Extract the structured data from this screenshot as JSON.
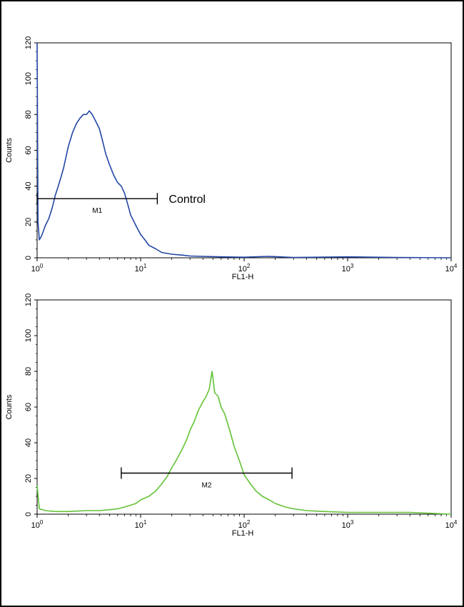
{
  "colors": {
    "panel1": "#2346a6",
    "panel2": "#62c236",
    "axis": "#000000"
  },
  "chart_data": [
    {
      "type": "line",
      "xlabel": "FL1-H",
      "ylabel": "Counts",
      "xscale": "log",
      "xlim": [
        1,
        10000
      ],
      "ylim": [
        0,
        120
      ],
      "x_ticks": [
        {
          "base": "10",
          "exp": "0"
        },
        {
          "base": "10",
          "exp": "1"
        },
        {
          "base": "10",
          "exp": "2"
        },
        {
          "base": "10",
          "exp": "3"
        },
        {
          "base": "10",
          "exp": "4"
        }
      ],
      "y_ticks": [
        "0",
        "20",
        "40",
        "60",
        "80",
        "100",
        "120"
      ],
      "marker": {
        "label": "M1",
        "x_range": [
          1.0,
          14.5
        ],
        "y": 33
      },
      "annotation": "Control",
      "series": [
        {
          "x": [
            1.0,
            1.02,
            1.05,
            1.1,
            1.15,
            1.2,
            1.3,
            1.4,
            1.5,
            1.6,
            1.7,
            1.8,
            2.0,
            2.2,
            2.4,
            2.6,
            2.8,
            3.0,
            3.2,
            3.4,
            3.7,
            4.0,
            4.3,
            4.6,
            5.0,
            5.5,
            6.0,
            6.5,
            7.0,
            7.5,
            8.0,
            9.0,
            10.0,
            11.0,
            12.0,
            14.0,
            16.0,
            20.0,
            25.0,
            30.0,
            40.0,
            60.0,
            100.0,
            170.0,
            300.0,
            1000.0,
            3000.0,
            10000.0
          ],
          "y": [
            120,
            20,
            10,
            12,
            15,
            18,
            22,
            28,
            35,
            40,
            45,
            50,
            62,
            70,
            75,
            78,
            80,
            80,
            82,
            80,
            76,
            72,
            65,
            58,
            52,
            46,
            42,
            40,
            36,
            30,
            24,
            18,
            13,
            10,
            7,
            5,
            3,
            2,
            1.5,
            1,
            0.8,
            0.5,
            0.3,
            0.8,
            0.2,
            0.5,
            0.2,
            0
          ]
        }
      ]
    },
    {
      "type": "line",
      "xlabel": "FL1-H",
      "ylabel": "Counts",
      "xscale": "log",
      "xlim": [
        1,
        10000
      ],
      "ylim": [
        0,
        120
      ],
      "x_ticks": [
        {
          "base": "10",
          "exp": "0"
        },
        {
          "base": "10",
          "exp": "1"
        },
        {
          "base": "10",
          "exp": "2"
        },
        {
          "base": "10",
          "exp": "3"
        },
        {
          "base": "10",
          "exp": "4"
        }
      ],
      "y_ticks": [
        "0",
        "20",
        "40",
        "60",
        "80",
        "100",
        "120"
      ],
      "marker": {
        "label": "M2",
        "x_range": [
          6.5,
          290
        ],
        "y": 23
      },
      "annotation": "",
      "series": [
        {
          "x": [
            1.0,
            1.05,
            1.2,
            1.5,
            2.0,
            3.0,
            4.0,
            5.0,
            6.0,
            7.0,
            8.0,
            9.0,
            10.0,
            12.0,
            14.0,
            16.0,
            18.0,
            20.0,
            22.0,
            25.0,
            28.0,
            30.0,
            33.0,
            36.0,
            40.0,
            43.0,
            46.0,
            49.0,
            52.0,
            56.0,
            60.0,
            65.0,
            70.0,
            75.0,
            80.0,
            90.0,
            100.0,
            115.0,
            130.0,
            150.0,
            175.0,
            200.0,
            250.0,
            300.0,
            400.0,
            600.0,
            1000.0,
            2000.0,
            4000.0,
            10000.0
          ],
          "y": [
            16,
            3,
            2,
            1.5,
            1.5,
            2,
            2,
            2.5,
            3,
            4,
            5,
            6,
            8,
            10,
            13,
            17,
            21,
            26,
            30,
            36,
            42,
            47,
            52,
            58,
            63,
            66,
            70,
            80,
            68,
            66,
            60,
            56,
            50,
            44,
            38,
            30,
            22,
            17,
            13,
            10,
            8,
            6,
            4,
            3,
            2,
            1.5,
            1,
            1,
            1,
            0
          ]
        }
      ]
    }
  ]
}
